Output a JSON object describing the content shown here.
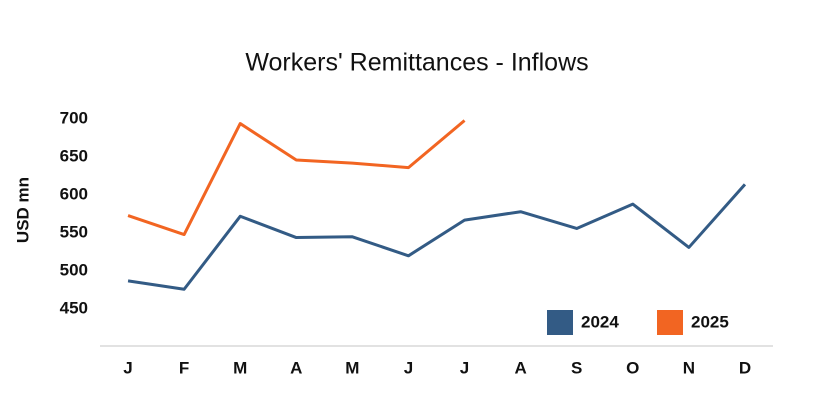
{
  "chart_data": {
    "type": "line",
    "title": "Workers' Remittances  - Inflows",
    "y_label": "USD mn",
    "categories": [
      "J",
      "F",
      "M",
      "A",
      "M",
      "J",
      "J",
      "A",
      "S",
      "O",
      "N",
      "D"
    ],
    "series": [
      {
        "name": "2024",
        "color": "#335b85",
        "values": [
          487,
          476,
          572,
          544,
          545,
          520,
          567,
          578,
          556,
          588,
          531,
          614
        ]
      },
      {
        "name": "2025",
        "color": "#f26522",
        "values": [
          573,
          548,
          694,
          646,
          642,
          636,
          698,
          null,
          null,
          null,
          null,
          null
        ]
      }
    ],
    "ylim": [
      400,
      750
    ],
    "yticks": [
      450,
      500,
      550,
      600,
      650,
      700
    ],
    "grid": false,
    "legend": "lower right"
  }
}
